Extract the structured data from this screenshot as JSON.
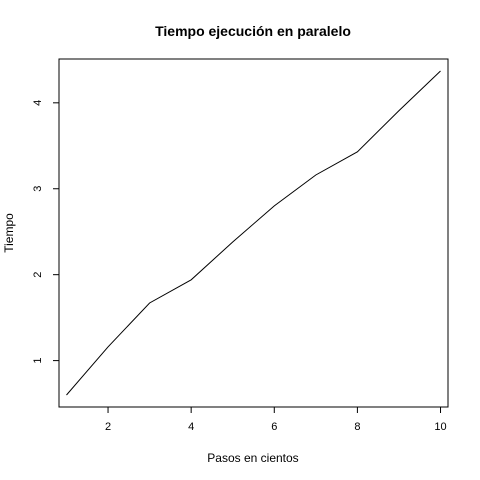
{
  "chart_data": {
    "type": "line",
    "title": "Tiempo ejecución en paralelo",
    "xlabel": "Pasos en cientos",
    "ylabel": "Tiempo",
    "x": [
      1,
      2,
      3,
      4,
      5,
      6,
      7,
      8,
      9,
      10
    ],
    "series": [
      {
        "values": [
          0.6,
          1.16,
          1.67,
          1.94,
          2.38,
          2.8,
          3.16,
          3.43,
          3.91,
          4.37
        ]
      }
    ],
    "xlim": [
      0.82,
      10.18
    ],
    "ylim": [
      0.46,
      4.51
    ],
    "xticks": [
      2,
      4,
      6,
      8,
      10
    ],
    "yticks": [
      1,
      2,
      3,
      4
    ],
    "grid": false,
    "line_color": "#000000"
  }
}
